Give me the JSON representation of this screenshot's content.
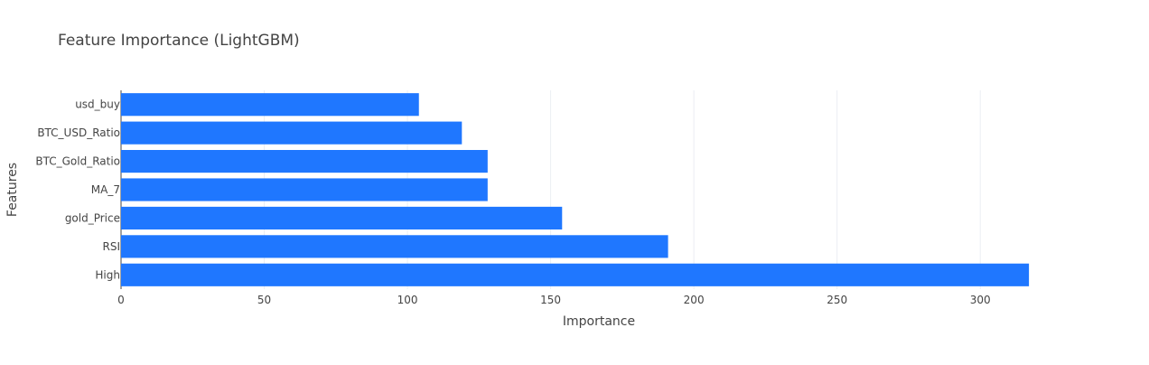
{
  "chart_data": {
    "type": "bar",
    "orientation": "horizontal",
    "title": "Feature Importance (LightGBM)",
    "xlabel": "Importance",
    "ylabel": "Features",
    "categories": [
      "usd_buy",
      "BTC_USD_Ratio",
      "BTC_Gold_Ratio",
      "MA_7",
      "gold_Price",
      "RSI",
      "High"
    ],
    "values": [
      104,
      119,
      128,
      128,
      154,
      191,
      317
    ],
    "xlim": [
      0,
      334
    ],
    "xticks": [
      0,
      50,
      100,
      150,
      200,
      250,
      300
    ],
    "grid": true,
    "legend": false,
    "colors": {
      "bar": "#1f77ff",
      "grid": "#ebeef3",
      "text": "#444444",
      "title": "#444444"
    }
  }
}
